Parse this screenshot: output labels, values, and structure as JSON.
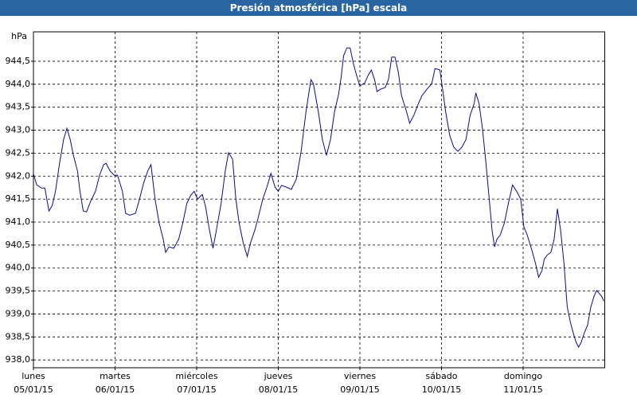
{
  "chart_data": {
    "type": "line",
    "title": "Presión atmosférica [hPa] escala",
    "y_label": "hPa",
    "x": [
      0,
      0.04,
      0.1,
      0.14,
      0.19,
      0.23,
      0.27,
      0.32,
      0.37,
      0.41,
      0.45,
      0.49,
      0.54,
      0.57,
      0.61,
      0.65,
      0.7,
      0.76,
      0.81,
      0.86,
      0.89,
      0.94,
      0.99,
      1.03,
      1.09,
      1.13,
      1.18,
      1.25,
      1.3,
      1.35,
      1.4,
      1.44,
      1.49,
      1.54,
      1.59,
      1.62,
      1.66,
      1.72,
      1.78,
      1.83,
      1.88,
      1.93,
      1.97,
      2.01,
      2.07,
      2.11,
      2.15,
      2.2,
      2.24,
      2.3,
      2.35,
      2.39,
      2.44,
      2.48,
      2.52,
      2.57,
      2.62,
      2.66,
      2.71,
      2.75,
      2.81,
      2.86,
      2.91,
      2.96,
      3.0,
      3.04,
      3.1,
      3.16,
      3.22,
      3.28,
      3.34,
      3.4,
      3.43,
      3.49,
      3.54,
      3.59,
      3.64,
      3.69,
      3.74,
      3.77,
      3.8,
      3.84,
      3.88,
      3.92,
      3.96,
      4.0,
      4.06,
      4.1,
      4.14,
      4.18,
      4.21,
      4.25,
      4.31,
      4.35,
      4.39,
      4.43,
      4.47,
      4.51,
      4.57,
      4.61,
      4.66,
      4.71,
      4.76,
      4.82,
      4.88,
      4.92,
      4.98,
      5.01,
      5.05,
      5.1,
      5.15,
      5.2,
      5.25,
      5.3,
      5.35,
      5.4,
      5.42,
      5.46,
      5.5,
      5.54,
      5.58,
      5.62,
      5.65,
      5.68,
      5.72,
      5.77,
      5.81,
      5.87,
      5.93,
      5.97,
      6.01,
      6.05,
      6.11,
      6.15,
      6.19,
      6.23,
      6.26,
      6.3,
      6.34,
      6.38,
      6.42,
      6.46,
      6.5,
      6.54,
      6.58,
      6.62,
      6.65,
      6.68,
      6.71,
      6.75,
      6.79,
      6.83,
      6.87,
      6.9,
      6.96,
      6.99
    ],
    "series": [
      {
        "color": "#0a0a96",
        "values": [
          942.05,
          941.81,
          941.74,
          941.74,
          941.24,
          941.36,
          941.67,
          942.28,
          942.8,
          943.04,
          942.8,
          942.45,
          942.11,
          941.67,
          941.24,
          941.22,
          941.45,
          941.67,
          942.02,
          942.25,
          942.28,
          942.11,
          942.02,
          942.02,
          941.67,
          941.19,
          941.15,
          941.19,
          941.5,
          941.85,
          942.11,
          942.25,
          941.5,
          940.98,
          940.63,
          940.34,
          940.46,
          940.43,
          940.63,
          940.98,
          941.41,
          941.59,
          941.67,
          941.5,
          941.6,
          941.33,
          940.89,
          940.43,
          940.81,
          941.41,
          942.11,
          942.51,
          942.37,
          941.5,
          940.98,
          940.55,
          940.25,
          940.55,
          940.81,
          941.07,
          941.5,
          941.76,
          942.06,
          941.76,
          941.67,
          941.8,
          941.76,
          941.71,
          941.93,
          942.54,
          943.41,
          944.1,
          944.01,
          943.41,
          942.8,
          942.45,
          942.8,
          943.41,
          943.79,
          944.15,
          944.62,
          944.79,
          944.79,
          944.45,
          944.19,
          943.96,
          944.03,
          944.19,
          944.31,
          944.1,
          943.84,
          943.89,
          943.93,
          944.1,
          944.59,
          944.59,
          944.27,
          943.75,
          943.41,
          943.15,
          943.32,
          943.55,
          943.75,
          943.89,
          944.01,
          944.34,
          944.31,
          943.93,
          943.41,
          942.89,
          942.63,
          942.54,
          942.63,
          942.8,
          943.32,
          943.58,
          943.81,
          943.58,
          943.06,
          942.37,
          941.59,
          940.81,
          940.46,
          940.63,
          940.72,
          940.98,
          941.33,
          941.81,
          941.64,
          941.5,
          940.89,
          940.72,
          940.37,
          940.11,
          939.8,
          939.94,
          940.2,
          940.29,
          940.34,
          940.63,
          941.29,
          940.81,
          940.11,
          939.16,
          938.81,
          938.55,
          938.38,
          938.28,
          938.38,
          938.59,
          938.76,
          939.16,
          939.39,
          939.51,
          939.39,
          939.28
        ]
      }
    ],
    "xlim": [
      0,
      7
    ],
    "xticks": [
      {
        "value": 0,
        "label": "lunes"
      },
      {
        "value": 1,
        "label": "martes"
      },
      {
        "value": 2,
        "label": "miércoles"
      },
      {
        "value": 3,
        "label": "jueves"
      },
      {
        "value": 4,
        "label": "viernes"
      },
      {
        "value": 5,
        "label": "sábado"
      },
      {
        "value": 6,
        "label": "domingo"
      }
    ],
    "xtick_dates": [
      "05/01/15",
      "06/01/15",
      "07/01/15",
      "08/01/15",
      "09/01/15",
      "10/01/15",
      "11/01/15"
    ],
    "ylim": [
      937.83,
      945.14
    ],
    "yticks": [
      {
        "value": 938,
        "label": "938,0"
      },
      {
        "value": 938.5,
        "label": "938,5"
      },
      {
        "value": 939,
        "label": "939,0"
      },
      {
        "value": 939.5,
        "label": "939,5"
      },
      {
        "value": 940,
        "label": "940,0"
      },
      {
        "value": 940.5,
        "label": "940,5"
      },
      {
        "value": 941,
        "label": "941,0"
      },
      {
        "value": 941.5,
        "label": "941,5"
      },
      {
        "value": 942,
        "label": "942,0"
      },
      {
        "value": 942.5,
        "label": "942,5"
      },
      {
        "value": 943,
        "label": "943,0"
      },
      {
        "value": 943.5,
        "label": "943,5"
      },
      {
        "value": 944,
        "label": "944,0"
      },
      {
        "value": 944.5,
        "label": "944,5"
      }
    ],
    "grid": true
  }
}
